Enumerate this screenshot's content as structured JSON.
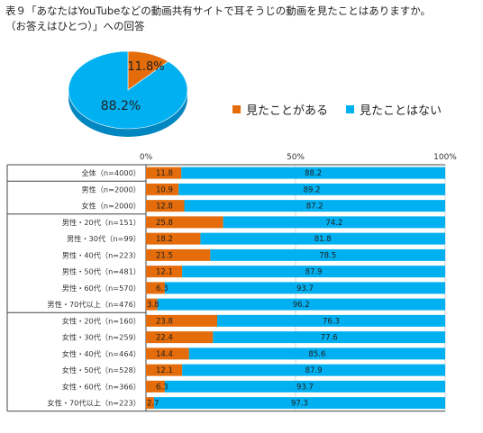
{
  "title_line1": "表９「あなたはYouTubeなどの動画共有サイトで耳そうじの動画を見たことはありますか。",
  "title_line2": "（お答えはひとつ）」への回答",
  "colors": {
    "seen": "#e46c0a",
    "not_seen": "#00b0f0",
    "not_seen_dark": "#0086c0",
    "seen_dark": "#a84e06"
  },
  "chart_data": [
    {
      "type": "pie",
      "labels": [
        "見たことがある",
        "見たことはない"
      ],
      "values": [
        11.8,
        88.2
      ],
      "value_labels": [
        "11.8%",
        "88.2%"
      ]
    },
    {
      "type": "bar",
      "orientation": "horizontal",
      "stacked": true,
      "xlim": [
        0,
        100
      ],
      "x_ticks": [
        "0%",
        "50%",
        "100%"
      ],
      "legend": [
        "見たことがある",
        "見たことはない"
      ],
      "legend_placement": "right of pie",
      "categories": [
        "全体（n=4000）",
        "男性（n=2000）",
        "女性（n=2000）",
        "男性・20代（n=151）",
        "男性・30代（n=99）",
        "男性・40代（n=223）",
        "男性・50代（n=481）",
        "男性・60代（n=570）",
        "男性・70代以上（n=476）",
        "女性・20代（n=160）",
        "女性・30代（n=259）",
        "女性・40代（n=464）",
        "女性・50代（n=528）",
        "女性・60代（n=366）",
        "女性・70代以上（n=223）"
      ],
      "series": [
        {
          "name": "見たことがある",
          "values": [
            11.8,
            10.9,
            12.8,
            25.8,
            18.2,
            21.5,
            12.1,
            6.3,
            3.8,
            23.8,
            22.4,
            14.4,
            12.1,
            6.3,
            2.7
          ]
        },
        {
          "name": "見たことはない",
          "values": [
            88.2,
            89.2,
            87.2,
            74.2,
            81.8,
            78.5,
            87.9,
            93.7,
            96.2,
            76.3,
            77.6,
            85.6,
            87.9,
            93.7,
            97.3
          ]
        }
      ],
      "value_labels": {
        "seen": [
          "11.8",
          "10.9",
          "12.8",
          "25.8",
          "18.2",
          "21.5",
          "12.1",
          "6.3",
          "3.8",
          "23.8",
          "22.4",
          "14.4",
          "12.1",
          "6.3",
          "2.7"
        ],
        "not_seen": [
          "88.2",
          "89.2",
          "87.2",
          "74.2",
          "81.8",
          "78.5",
          "87.9",
          "93.7",
          "96.2",
          "76.3",
          "77.6",
          "85.6",
          "87.9",
          "93.7",
          "97.3"
        ]
      },
      "group_separators_after": [
        0,
        2,
        8
      ]
    }
  ]
}
